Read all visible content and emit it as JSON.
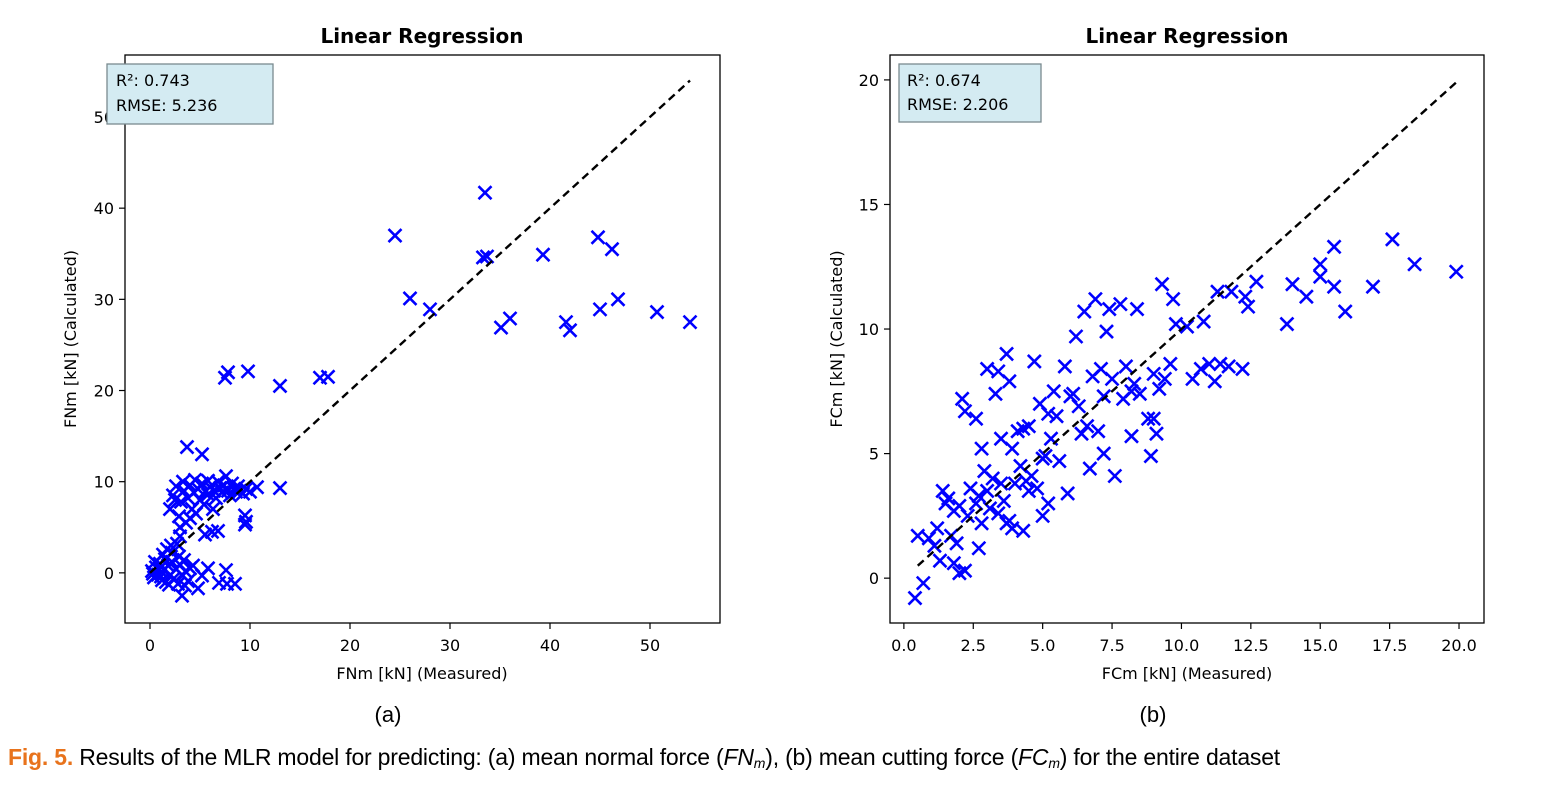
{
  "chart_data": [
    {
      "type": "scatter",
      "panel": "(a)",
      "title": "Linear Regression",
      "xlabel": "FNm [kN] (Measured)",
      "ylabel": "FNm [kN] (Calculated)",
      "xlim": [
        -2.5,
        57.0
      ],
      "ylim": [
        -5.5,
        56.8
      ],
      "xticks": [
        0,
        10,
        20,
        30,
        40,
        50
      ],
      "yticks": [
        0,
        10,
        20,
        30,
        40,
        50
      ],
      "grid": false,
      "marker": "x",
      "marker_color": "#0000ff",
      "reference_line": {
        "style": "dashed",
        "color": "#000000",
        "from": [
          0,
          0
        ],
        "to": [
          54,
          54
        ]
      },
      "stats_box": {
        "lines": [
          "R²: 0.743",
          "RMSE: 5.236"
        ],
        "placement": "top-left",
        "background": "#d4ebf2"
      },
      "points": [
        [
          24.5,
          37.0
        ],
        [
          33.5,
          41.7
        ],
        [
          33.3,
          34.6
        ],
        [
          33.7,
          34.7
        ],
        [
          26.0,
          30.1
        ],
        [
          28.0,
          28.9
        ],
        [
          39.3,
          34.9
        ],
        [
          44.8,
          36.8
        ],
        [
          46.2,
          35.5
        ],
        [
          35.1,
          26.9
        ],
        [
          36.0,
          27.9
        ],
        [
          41.6,
          27.5
        ],
        [
          42.0,
          26.6
        ],
        [
          45.0,
          28.9
        ],
        [
          46.8,
          30.0
        ],
        [
          50.7,
          28.6
        ],
        [
          54.0,
          27.5
        ],
        [
          7.5,
          21.4
        ],
        [
          7.8,
          22.0
        ],
        [
          9.8,
          22.1
        ],
        [
          13.0,
          20.5
        ],
        [
          17.0,
          21.4
        ],
        [
          17.8,
          21.5
        ],
        [
          3.7,
          13.8
        ],
        [
          5.2,
          13.0
        ],
        [
          13.0,
          9.3
        ],
        [
          10.7,
          9.4
        ],
        [
          9.5,
          6.3
        ],
        [
          9.5,
          5.3
        ],
        [
          9.6,
          5.6
        ],
        [
          7.6,
          0.3
        ],
        [
          7.7,
          -1.2
        ],
        [
          8.5,
          -1.2
        ],
        [
          6.9,
          -1.1
        ],
        [
          4.8,
          -1.7
        ],
        [
          3.2,
          -2.5
        ],
        [
          5.2,
          -0.3
        ],
        [
          4.3,
          0.8
        ],
        [
          5.8,
          0.5
        ],
        [
          2.0,
          7.0
        ],
        [
          2.3,
          8.5
        ],
        [
          2.6,
          9.5
        ],
        [
          2.9,
          6.2
        ],
        [
          3.1,
          7.8
        ],
        [
          3.4,
          9.0
        ],
        [
          3.6,
          5.5
        ],
        [
          3.8,
          8.2
        ],
        [
          4.0,
          9.6
        ],
        [
          4.2,
          7.0
        ],
        [
          4.4,
          8.8
        ],
        [
          4.6,
          6.5
        ],
        [
          4.8,
          9.2
        ],
        [
          5.0,
          8.0
        ],
        [
          5.2,
          9.8
        ],
        [
          5.4,
          7.5
        ],
        [
          5.6,
          9.0
        ],
        [
          5.8,
          8.6
        ],
        [
          6.0,
          9.4
        ],
        [
          6.2,
          4.5
        ],
        [
          6.4,
          9.0
        ],
        [
          6.6,
          8.2
        ],
        [
          6.8,
          10.0
        ],
        [
          7.0,
          9.3
        ],
        [
          7.2,
          8.8
        ],
        [
          7.4,
          9.6
        ],
        [
          7.6,
          10.6
        ],
        [
          7.8,
          9.0
        ],
        [
          8.0,
          8.5
        ],
        [
          8.2,
          9.8
        ],
        [
          8.4,
          9.2
        ],
        [
          8.6,
          8.9
        ],
        [
          8.8,
          9.5
        ],
        [
          9.0,
          9.0
        ],
        [
          9.3,
          8.7
        ],
        [
          9.6,
          9.2
        ],
        [
          10.0,
          8.9
        ],
        [
          5.5,
          4.2
        ],
        [
          6.8,
          4.6
        ],
        [
          4.0,
          6.0
        ],
        [
          3.0,
          5.0
        ],
        [
          2.5,
          8.0
        ],
        [
          3.3,
          10.0
        ],
        [
          4.5,
          10.2
        ],
        [
          5.8,
          10.1
        ],
        [
          6.3,
          7.0
        ],
        [
          2.7,
          3.2
        ],
        [
          3.0,
          4.0
        ],
        [
          2.2,
          2.2
        ],
        [
          1.5,
          1.5
        ],
        [
          0.2,
          0.2
        ],
        [
          0.4,
          -0.5
        ],
        [
          0.6,
          0.6
        ],
        [
          0.8,
          -0.2
        ],
        [
          1.0,
          1.0
        ],
        [
          1.2,
          -0.8
        ],
        [
          1.4,
          0.3
        ],
        [
          1.6,
          -1.0
        ],
        [
          1.8,
          0.8
        ],
        [
          2.0,
          -0.3
        ],
        [
          2.2,
          1.2
        ],
        [
          2.4,
          -0.6
        ],
        [
          2.6,
          0.4
        ],
        [
          2.8,
          -1.2
        ],
        [
          3.0,
          0.9
        ],
        [
          3.2,
          -0.2
        ],
        [
          3.4,
          1.4
        ],
        [
          3.6,
          0.1
        ],
        [
          3.8,
          -0.9
        ],
        [
          4.0,
          0.5
        ],
        [
          0.3,
          -0.1
        ],
        [
          0.9,
          0.4
        ],
        [
          1.3,
          2.0
        ],
        [
          1.7,
          2.6
        ],
        [
          2.1,
          3.0
        ],
        [
          1.1,
          -0.4
        ],
        [
          1.9,
          -1.3
        ],
        [
          2.9,
          1.8
        ],
        [
          0.5,
          1.2
        ],
        [
          3.5,
          -1.4
        ]
      ]
    },
    {
      "type": "scatter",
      "panel": "(b)",
      "title": "Linear Regression",
      "xlabel": "FCm [kN] (Measured)",
      "ylabel": "FCm [kN] (Calculated)",
      "xlim": [
        -0.5,
        20.9
      ],
      "ylim": [
        -1.8,
        21.0
      ],
      "xticks": [
        "0.0",
        "2.5",
        "5.0",
        "7.5",
        "10.0",
        "12.5",
        "15.0",
        "17.5",
        "20.0"
      ],
      "yticks": [
        0,
        5,
        10,
        15,
        20
      ],
      "grid": false,
      "marker": "x",
      "marker_color": "#0000ff",
      "reference_line": {
        "style": "dashed",
        "color": "#000000",
        "from": [
          0.5,
          0.5
        ],
        "to": [
          19.9,
          19.9
        ]
      },
      "stats_box": {
        "lines": [
          "R²: 0.674",
          "RMSE: 2.206"
        ],
        "placement": "top-left",
        "background": "#d4ebf2"
      },
      "points": [
        [
          0.4,
          -0.8
        ],
        [
          0.7,
          -0.2
        ],
        [
          0.5,
          1.7
        ],
        [
          0.9,
          1.6
        ],
        [
          1.2,
          2.0
        ],
        [
          1.4,
          3.5
        ],
        [
          1.6,
          3.2
        ],
        [
          1.8,
          2.7
        ],
        [
          1.9,
          1.4
        ],
        [
          2.0,
          0.2
        ],
        [
          2.2,
          0.3
        ],
        [
          1.8,
          0.6
        ],
        [
          2.3,
          2.5
        ],
        [
          2.6,
          3.0
        ],
        [
          2.8,
          2.2
        ],
        [
          3.0,
          3.5
        ],
        [
          3.2,
          4.0
        ],
        [
          3.4,
          2.6
        ],
        [
          3.6,
          3.1
        ],
        [
          3.8,
          2.3
        ],
        [
          4.0,
          3.8
        ],
        [
          4.2,
          4.5
        ],
        [
          4.4,
          3.9
        ],
        [
          4.6,
          4.1
        ],
        [
          4.8,
          3.6
        ],
        [
          5.0,
          2.5
        ],
        [
          5.1,
          4.9
        ],
        [
          5.2,
          3.0
        ],
        [
          2.1,
          7.2
        ],
        [
          2.2,
          6.7
        ],
        [
          2.6,
          6.4
        ],
        [
          2.8,
          5.2
        ],
        [
          3.0,
          8.4
        ],
        [
          3.4,
          8.3
        ],
        [
          3.7,
          9.0
        ],
        [
          3.8,
          7.9
        ],
        [
          3.3,
          7.4
        ],
        [
          4.5,
          6.1
        ],
        [
          4.7,
          8.7
        ],
        [
          5.2,
          6.6
        ],
        [
          5.4,
          7.5
        ],
        [
          5.8,
          8.5
        ],
        [
          6.0,
          7.3
        ],
        [
          6.2,
          9.7
        ],
        [
          6.5,
          10.7
        ],
        [
          6.9,
          11.2
        ],
        [
          7.3,
          9.9
        ],
        [
          7.4,
          10.8
        ],
        [
          7.8,
          11.0
        ],
        [
          8.2,
          7.5
        ],
        [
          8.4,
          10.8
        ],
        [
          9.3,
          11.8
        ],
        [
          9.7,
          11.2
        ],
        [
          9.8,
          10.2
        ],
        [
          10.2,
          10.1
        ],
        [
          10.8,
          10.3
        ],
        [
          11.3,
          11.5
        ],
        [
          11.8,
          11.5
        ],
        [
          12.3,
          11.3
        ],
        [
          12.7,
          11.9
        ],
        [
          6.1,
          7.4
        ],
        [
          6.4,
          5.8
        ],
        [
          6.6,
          6.1
        ],
        [
          7.0,
          5.9
        ],
        [
          7.2,
          7.3
        ],
        [
          7.5,
          8.0
        ],
        [
          7.9,
          7.2
        ],
        [
          8.3,
          7.8
        ],
        [
          8.5,
          7.4
        ],
        [
          8.8,
          6.4
        ],
        [
          9.0,
          6.4
        ],
        [
          9.2,
          7.6
        ],
        [
          9.4,
          8.0
        ],
        [
          9.6,
          8.6
        ],
        [
          9.0,
          8.2
        ],
        [
          8.9,
          4.9
        ],
        [
          8.2,
          5.7
        ],
        [
          7.6,
          4.1
        ],
        [
          7.2,
          5.0
        ],
        [
          6.7,
          4.4
        ],
        [
          9.1,
          5.8
        ],
        [
          10.4,
          8.0
        ],
        [
          10.7,
          8.4
        ],
        [
          11.0,
          8.6
        ],
        [
          11.4,
          8.6
        ],
        [
          11.7,
          8.5
        ],
        [
          12.2,
          8.4
        ],
        [
          11.2,
          7.9
        ],
        [
          12.4,
          10.9
        ],
        [
          13.8,
          10.2
        ],
        [
          14.5,
          11.3
        ],
        [
          15.0,
          12.1
        ],
        [
          15.5,
          11.7
        ],
        [
          15.9,
          10.7
        ],
        [
          14.0,
          11.8
        ],
        [
          15.0,
          12.6
        ],
        [
          15.5,
          13.3
        ],
        [
          16.9,
          11.7
        ],
        [
          17.6,
          13.6
        ],
        [
          18.4,
          12.6
        ],
        [
          19.9,
          12.3
        ],
        [
          1.5,
          3.0
        ],
        [
          1.7,
          1.7
        ],
        [
          2.0,
          2.9
        ],
        [
          2.4,
          3.6
        ],
        [
          2.9,
          4.3
        ],
        [
          3.5,
          5.6
        ],
        [
          3.9,
          5.2
        ],
        [
          4.3,
          6.0
        ],
        [
          4.1,
          5.9
        ],
        [
          5.3,
          5.6
        ],
        [
          5.6,
          4.7
        ],
        [
          5.9,
          3.4
        ],
        [
          6.3,
          6.9
        ],
        [
          6.8,
          8.1
        ],
        [
          7.1,
          8.4
        ],
        [
          5.5,
          6.5
        ],
        [
          4.9,
          7.0
        ],
        [
          3.1,
          2.8
        ],
        [
          2.7,
          3.3
        ],
        [
          4.3,
          1.9
        ],
        [
          3.7,
          2.2
        ],
        [
          3.9,
          2.0
        ],
        [
          1.1,
          1.3
        ],
        [
          1.3,
          0.7
        ],
        [
          2.7,
          1.2
        ],
        [
          3.5,
          3.8
        ],
        [
          4.5,
          3.5
        ],
        [
          5.0,
          4.8
        ],
        [
          8.0,
          8.5
        ]
      ]
    }
  ],
  "subcaptions": [
    "(a)",
    "(b)"
  ],
  "caption": {
    "label": "Fig. 5.",
    "text_1": " Results of the MLR model for predicting: (a) mean normal force (",
    "sym_1": "FN",
    "sub_1": "m",
    "text_2": "), (b) mean cutting force (",
    "sym_2": "FC",
    "sub_2": "m",
    "text_3": ") for the entire dataset",
    "label_color": "#e8731c"
  }
}
